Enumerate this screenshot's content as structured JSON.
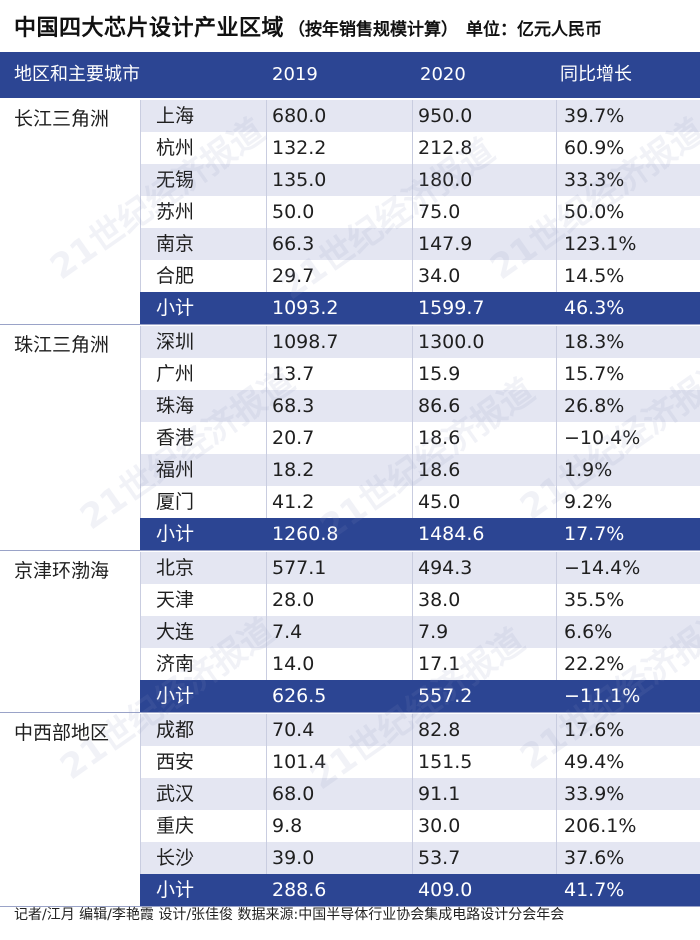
{
  "title": {
    "main": "中国四大芯片设计产业区域",
    "paren": "（按年销售规模计算）",
    "unit": "单位：亿元人民币"
  },
  "header": {
    "region": "地区和主要城市",
    "y2019": "2019",
    "y2020": "2020",
    "yoy": "同比增长"
  },
  "regions": [
    {
      "name": "长江三角洲",
      "rows": [
        {
          "city": "上海",
          "y2019": "680.0",
          "y2020": "950.0",
          "yoy": "39.7%"
        },
        {
          "city": "杭州",
          "y2019": "132.2",
          "y2020": "212.8",
          "yoy": "60.9%"
        },
        {
          "city": "无锡",
          "y2019": "135.0",
          "y2020": "180.0",
          "yoy": "33.3%"
        },
        {
          "city": "苏州",
          "y2019": "50.0",
          "y2020": "75.0",
          "yoy": "50.0%"
        },
        {
          "city": "南京",
          "y2019": "66.3",
          "y2020": "147.9",
          "yoy": "123.1%"
        },
        {
          "city": "合肥",
          "y2019": "29.7",
          "y2020": "34.0",
          "yoy": "14.5%"
        }
      ],
      "subtotal": {
        "city": "小计",
        "y2019": "1093.2",
        "y2020": "1599.7",
        "yoy": "46.3%"
      }
    },
    {
      "name": "珠江三角洲",
      "rows": [
        {
          "city": "深圳",
          "y2019": "1098.7",
          "y2020": "1300.0",
          "yoy": "18.3%"
        },
        {
          "city": "广州",
          "y2019": "13.7",
          "y2020": "15.9",
          "yoy": "15.7%"
        },
        {
          "city": "珠海",
          "y2019": "68.3",
          "y2020": "86.6",
          "yoy": "26.8%"
        },
        {
          "city": "香港",
          "y2019": "20.7",
          "y2020": "18.6",
          "yoy": "−10.4%"
        },
        {
          "city": "福州",
          "y2019": "18.2",
          "y2020": "18.6",
          "yoy": "1.9%"
        },
        {
          "city": "厦门",
          "y2019": "41.2",
          "y2020": "45.0",
          "yoy": "9.2%"
        }
      ],
      "subtotal": {
        "city": "小计",
        "y2019": "1260.8",
        "y2020": "1484.6",
        "yoy": "17.7%"
      }
    },
    {
      "name": "京津环渤海",
      "rows": [
        {
          "city": "北京",
          "y2019": "577.1",
          "y2020": "494.3",
          "yoy": "−14.4%"
        },
        {
          "city": "天津",
          "y2019": "28.0",
          "y2020": "38.0",
          "yoy": "35.5%"
        },
        {
          "city": "大连",
          "y2019": "7.4",
          "y2020": "7.9",
          "yoy": "6.6%"
        },
        {
          "city": "济南",
          "y2019": "14.0",
          "y2020": "17.1",
          "yoy": "22.2%"
        }
      ],
      "subtotal": {
        "city": "小计",
        "y2019": "626.5",
        "y2020": "557.2",
        "yoy": "−11.1%"
      }
    },
    {
      "name": "中西部地区",
      "rows": [
        {
          "city": "成都",
          "y2019": "70.4",
          "y2020": "82.8",
          "yoy": "17.6%"
        },
        {
          "city": "西安",
          "y2019": "101.4",
          "y2020": "151.5",
          "yoy": "49.4%"
        },
        {
          "city": "武汉",
          "y2019": "68.0",
          "y2020": "91.1",
          "yoy": "33.9%"
        },
        {
          "city": "重庆",
          "y2019": "9.8",
          "y2020": "30.0",
          "yoy": "206.1%"
        },
        {
          "city": "长沙",
          "y2019": "39.0",
          "y2020": "53.7",
          "yoy": "37.6%"
        }
      ],
      "subtotal": {
        "city": "小计",
        "y2019": "288.6",
        "y2020": "409.0",
        "yoy": "41.7%"
      }
    }
  ],
  "watermark": "21世纪经济报道",
  "footer": "记者/江月  编辑/李艳霞  设计/张佳俊  数据来源:中国半导体行业协会集成电路设计分会年会",
  "colors": {
    "header_bg": "#2c4593",
    "row_light": "#e4e6f2",
    "subtotal_bg": "#2c4593"
  }
}
